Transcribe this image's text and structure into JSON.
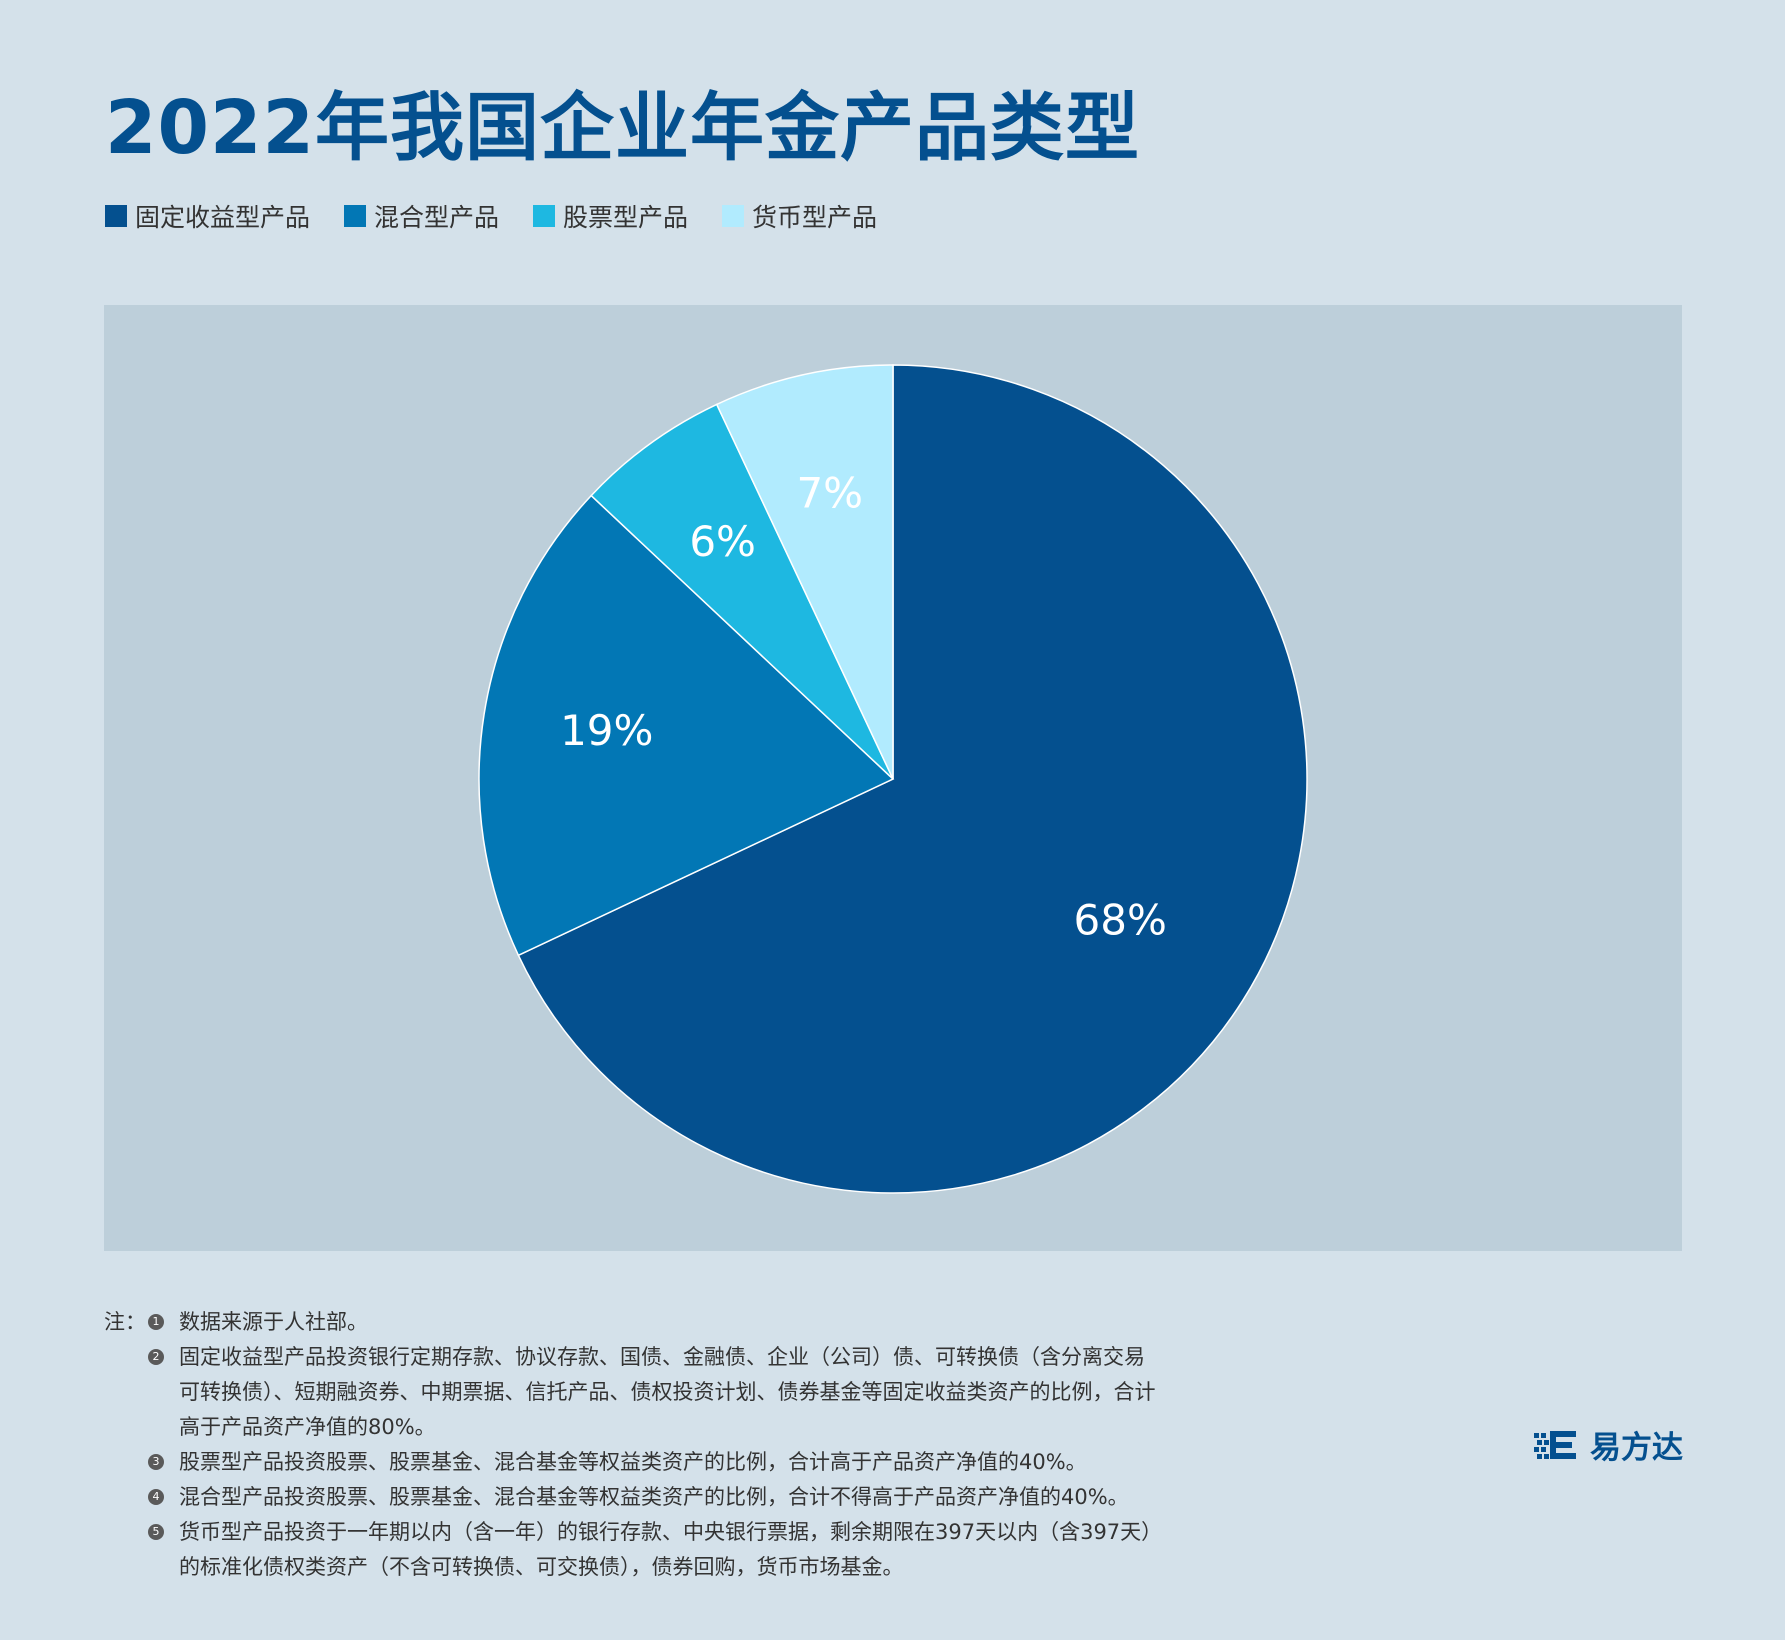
{
  "chart_data": {
    "type": "pie",
    "title": "2022年我国企业年金产品类型",
    "categories": [
      "固定收益型产品",
      "混合型产品",
      "股票型产品",
      "货币型产品"
    ],
    "values": [
      68,
      19,
      6,
      7
    ],
    "labels": [
      "68%",
      "19%",
      "6%",
      "7%"
    ],
    "colors": [
      "#04508f",
      "#0277b5",
      "#1eb8e1",
      "#b1ebfe"
    ],
    "legend_placement": "top-left",
    "start_angle": "12 o'clock, clockwise"
  },
  "notes": {
    "prefix": "注：",
    "items": [
      {
        "num": "1",
        "text": "数据来源于人社部。"
      },
      {
        "num": "2",
        "text": "固定收益型产品投资银行定期存款、协议存款、国债、金融债、企业（公司）债、可转换债（含分离交易可转换债）、短期融资券、中期票据、信托产品、债权投资计划、债券基金等固定收益类资产的比例，合计高于产品资产净值的80%。"
      },
      {
        "num": "3",
        "text": "股票型产品投资股票、股票基金、混合基金等权益类资产的比例，合计高于产品资产净值的40%。"
      },
      {
        "num": "4",
        "text": "混合型产品投资股票、股票基金、混合基金等权益类资产的比例，合计不得高于产品资产净值的40%。"
      },
      {
        "num": "5",
        "text": "货币型产品投资于一年期以内（含一年）的银行存款、中央银行票据，剩余期限在397天以内（含397天）的标准化债权类资产（不含可转换债、可交换债），债券回购，货币市场基金。"
      }
    ]
  },
  "logo": {
    "text": "易方达",
    "icon": "e-logo-icon"
  }
}
